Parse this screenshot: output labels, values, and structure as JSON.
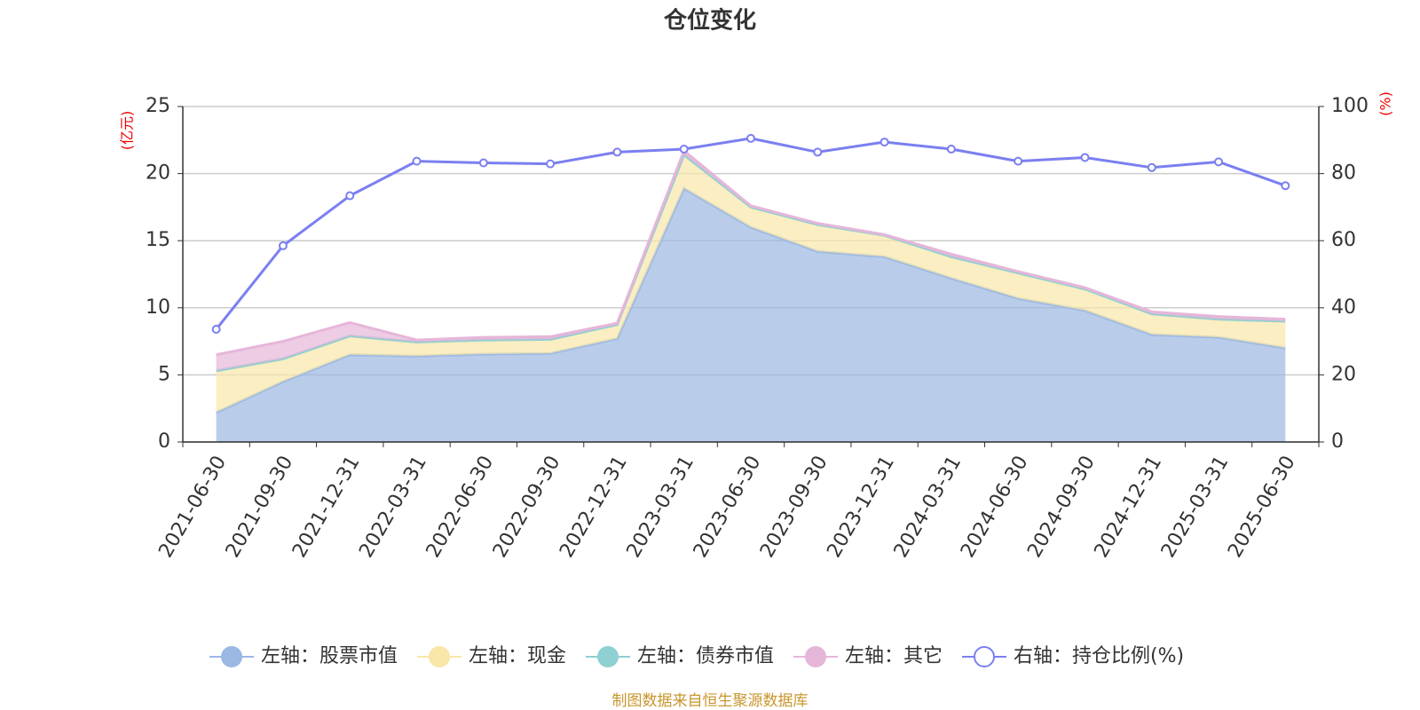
{
  "chart_data": {
    "type": "area",
    "title": "仓位变化",
    "y_label": "(亿元)",
    "y2_label": "(%)",
    "source": "制图数据来自恒生聚源数据库",
    "x": [
      "2021-06-30",
      "2021-09-30",
      "2021-12-31",
      "2022-03-31",
      "2022-06-30",
      "2022-09-30",
      "2022-12-31",
      "2023-03-31",
      "2023-06-30",
      "2023-09-30",
      "2023-12-31",
      "2024-03-31",
      "2024-06-30",
      "2024-09-30",
      "2024-12-31",
      "2025-03-31",
      "2025-06-30"
    ],
    "series": [
      {
        "name": "左轴：股票市值",
        "color": "#9bb8e3",
        "values": [
          2.2,
          4.5,
          6.5,
          6.4,
          6.55,
          6.6,
          7.7,
          18.9,
          16.0,
          14.2,
          13.8,
          12.2,
          10.7,
          9.8,
          8.0,
          7.8,
          7.0
        ]
      },
      {
        "name": "左轴：现金",
        "color": "#f8e7a8",
        "values": [
          3.1,
          1.7,
          1.4,
          1.05,
          1.05,
          1.05,
          1.05,
          2.5,
          1.5,
          2.0,
          1.6,
          1.6,
          1.9,
          1.6,
          1.55,
          1.35,
          2.0
        ]
      },
      {
        "name": "左轴：债券市值",
        "color": "#8fd0d2",
        "values": [
          0,
          0,
          0,
          0,
          0,
          0,
          0,
          0,
          0,
          0,
          0,
          0,
          0,
          0,
          0,
          0,
          0
        ]
      },
      {
        "name": "左轴：其它",
        "color": "#e6b6d9",
        "values": [
          1.2,
          1.3,
          1.0,
          0.15,
          0.2,
          0.2,
          0.1,
          0.3,
          0.1,
          0.1,
          0.05,
          0.2,
          0.1,
          0.1,
          0.15,
          0.2,
          0.15
        ]
      },
      {
        "name": "右轴：持仓比例(%)",
        "color": "#7b7ff0",
        "axis": "y2",
        "values": [
          33.6,
          58.5,
          73.4,
          83.7,
          83.2,
          82.9,
          86.4,
          87.3,
          90.5,
          86.4,
          89.4,
          87.3,
          83.7,
          84.8,
          81.8,
          83.5,
          76.4
        ]
      }
    ],
    "ylim": [
      0,
      25
    ],
    "yticks": [
      0,
      5,
      10,
      15,
      20,
      25
    ],
    "y2lim": [
      0,
      100
    ],
    "y2ticks": [
      0,
      20,
      40,
      60,
      80,
      100
    ],
    "grid": true,
    "stacked": true,
    "legend": "bottom"
  }
}
